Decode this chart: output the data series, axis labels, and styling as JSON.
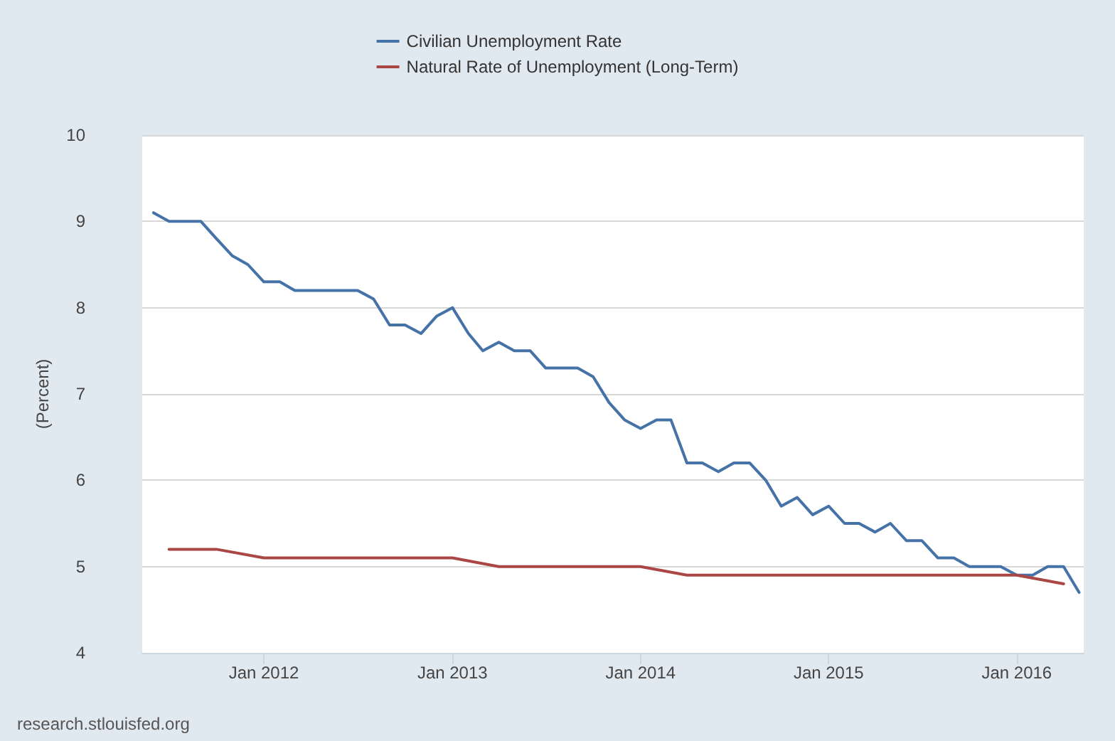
{
  "chart_data": {
    "type": "line",
    "ylabel": "(Percent)",
    "legend": "top",
    "grid": "y",
    "marker": "none",
    "line_style": "solid",
    "annotations": [
      "research.stlouisfed.org"
    ],
    "xlim": [
      "2011-05-10",
      "2016-05-10"
    ],
    "ylim": [
      4,
      10
    ],
    "yticks": [
      4,
      5,
      6,
      7,
      8,
      9,
      10
    ],
    "xticks": [
      {
        "value": "2012-01-01",
        "label": "Jan 2012"
      },
      {
        "value": "2013-01-01",
        "label": "Jan 2013"
      },
      {
        "value": "2014-01-01",
        "label": "Jan 2014"
      },
      {
        "value": "2015-01-01",
        "label": "Jan 2015"
      },
      {
        "value": "2016-01-01",
        "label": "Jan 2016"
      }
    ],
    "series": [
      {
        "name": "Civilian Unemployment Rate",
        "color": "#4572a7",
        "x": [
          "2011-06",
          "2011-07",
          "2011-08",
          "2011-09",
          "2011-10",
          "2011-11",
          "2011-12",
          "2012-01",
          "2012-02",
          "2012-03",
          "2012-04",
          "2012-05",
          "2012-06",
          "2012-07",
          "2012-08",
          "2012-09",
          "2012-10",
          "2012-11",
          "2012-12",
          "2013-01",
          "2013-02",
          "2013-03",
          "2013-04",
          "2013-05",
          "2013-06",
          "2013-07",
          "2013-08",
          "2013-09",
          "2013-10",
          "2013-11",
          "2013-12",
          "2014-01",
          "2014-02",
          "2014-03",
          "2014-04",
          "2014-05",
          "2014-06",
          "2014-07",
          "2014-08",
          "2014-09",
          "2014-10",
          "2014-11",
          "2014-12",
          "2015-01",
          "2015-02",
          "2015-03",
          "2015-04",
          "2015-05",
          "2015-06",
          "2015-07",
          "2015-08",
          "2015-09",
          "2015-10",
          "2015-11",
          "2015-12",
          "2016-01",
          "2016-02",
          "2016-03",
          "2016-04",
          "2016-05"
        ],
        "values": [
          9.1,
          9.0,
          9.0,
          9.0,
          8.8,
          8.6,
          8.5,
          8.3,
          8.3,
          8.2,
          8.2,
          8.2,
          8.2,
          8.2,
          8.1,
          7.8,
          7.8,
          7.7,
          7.9,
          8.0,
          7.7,
          7.5,
          7.6,
          7.5,
          7.5,
          7.3,
          7.3,
          7.3,
          7.2,
          6.9,
          6.7,
          6.6,
          6.7,
          6.7,
          6.2,
          6.2,
          6.1,
          6.2,
          6.2,
          6.0,
          5.7,
          5.8,
          5.6,
          5.7,
          5.5,
          5.5,
          5.4,
          5.5,
          5.3,
          5.3,
          5.1,
          5.1,
          5.0,
          5.0,
          5.0,
          4.9,
          4.9,
          5.0,
          5.0,
          4.7
        ]
      },
      {
        "name": "Natural Rate of Unemployment (Long-Term)",
        "color": "#aa4643",
        "x": [
          "2011-07",
          "2011-10",
          "2012-01",
          "2012-04",
          "2012-07",
          "2012-10",
          "2013-01",
          "2013-04",
          "2013-07",
          "2013-10",
          "2014-01",
          "2014-04",
          "2014-07",
          "2014-10",
          "2015-01",
          "2015-04",
          "2015-07",
          "2015-10",
          "2016-01",
          "2016-04"
        ],
        "values": [
          5.2,
          5.2,
          5.1,
          5.1,
          5.1,
          5.1,
          5.1,
          5.0,
          5.0,
          5.0,
          5.0,
          4.9,
          4.9,
          4.9,
          4.9,
          4.9,
          4.9,
          4.9,
          4.9,
          4.8
        ]
      }
    ]
  }
}
